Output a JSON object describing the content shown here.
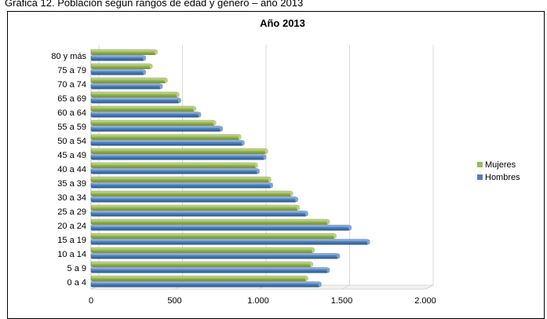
{
  "page_title": "Gráfica 12. Población según rangos de edad y género – año 2013",
  "colors": {
    "mujeres": "#9bbb59",
    "hombres": "#4f81bd",
    "grid": "#d9d9d9"
  },
  "chart_data": {
    "type": "bar",
    "orientation": "horizontal",
    "title": "Año 2013",
    "xlabel": "",
    "ylabel": "",
    "xlim": [
      0,
      2000
    ],
    "x_ticks": [
      0,
      500,
      1000,
      1500,
      2000
    ],
    "x_tick_labels": [
      "0",
      "500",
      "1.000",
      "1.500",
      "2.000"
    ],
    "categories": [
      "0 a 4",
      "5 a 9",
      "10 a 14",
      "15 a 19",
      "20 a 24",
      "25 a 29",
      "30 a 34",
      "35 a 39",
      "40 a 44",
      "45 a 49",
      "50 a 54",
      "55 a 59",
      "60 a 64",
      "65 a 69",
      "70 a 74",
      "75 a 79",
      "80 y más"
    ],
    "series": [
      {
        "name": "Mujeres",
        "color": "#9bbb59",
        "values": [
          1290,
          1320,
          1330,
          1460,
          1420,
          1240,
          1200,
          1070,
          990,
          1050,
          890,
          740,
          620,
          520,
          450,
          360,
          390
        ]
      },
      {
        "name": "Hombres",
        "color": "#4f81bd",
        "values": [
          1370,
          1420,
          1480,
          1660,
          1550,
          1290,
          1230,
          1080,
          1000,
          1040,
          910,
          780,
          650,
          530,
          420,
          320,
          320
        ]
      }
    ],
    "legend": [
      "Mujeres",
      "Hombres"
    ],
    "legend_position": "right",
    "grid": true
  }
}
